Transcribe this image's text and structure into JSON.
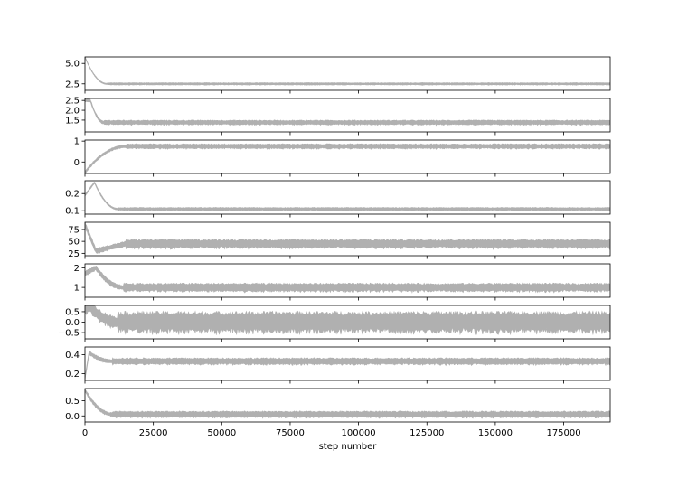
{
  "chart_data": {
    "type": "line",
    "xlabel": "step number",
    "xlim": [
      0,
      192000
    ],
    "x_ticks": [
      0,
      25000,
      50000,
      75000,
      100000,
      125000,
      150000,
      175000
    ],
    "x_tick_labels": [
      "0",
      "25000",
      "50000",
      "75000",
      "100000",
      "125000",
      "150000",
      "175000"
    ],
    "series_color": "#b0b0b0",
    "panels": [
      {
        "ylim": [
          1.7,
          5.8
        ],
        "y_ticks": [
          2.5,
          5.0
        ],
        "y_tick_labels": [
          "2.5",
          "5.0"
        ],
        "trace": {
          "start": 5.8,
          "peak": 5.8,
          "peak_x": 0,
          "settle_x": 8000,
          "mean": 2.5,
          "spread": 0.12
        }
      },
      {
        "ylim": [
          0.9,
          2.6
        ],
        "y_ticks": [
          1.5,
          2.0,
          2.5
        ],
        "y_tick_labels": [
          "1.5",
          "2.0",
          "2.5"
        ],
        "trace": {
          "start": 2.5,
          "peak": 2.5,
          "peak_x": 2000,
          "settle_x": 7000,
          "mean": 1.38,
          "spread": 0.1
        }
      },
      {
        "ylim": [
          -0.55,
          1.05
        ],
        "y_ticks": [
          0,
          1
        ],
        "y_tick_labels": [
          "0",
          "1"
        ],
        "trace": {
          "start": -0.5,
          "peak": -0.5,
          "peak_x": 0,
          "settle_x": 15000,
          "mean": 0.75,
          "spread": 0.1
        }
      },
      {
        "ylim": [
          0.08,
          0.275
        ],
        "y_ticks": [
          0.1,
          0.2
        ],
        "y_tick_labels": [
          "0.1",
          "0.2"
        ],
        "trace": {
          "start": 0.19,
          "peak": 0.265,
          "peak_x": 3500,
          "settle_x": 12000,
          "mean": 0.11,
          "spread": 0.008
        }
      },
      {
        "ylim": [
          20,
          90
        ],
        "y_ticks": [
          25,
          50,
          75
        ],
        "y_tick_labels": [
          "25",
          "50",
          "75"
        ],
        "trace": {
          "start": 85,
          "peak": 85,
          "peak_x": 0,
          "dip": 30,
          "dip_x": 4000,
          "settle_x": 15000,
          "mean": 45,
          "spread": 8
        }
      },
      {
        "ylim": [
          0.5,
          2.2
        ],
        "y_ticks": [
          1,
          2
        ],
        "y_tick_labels": [
          "1",
          "2"
        ],
        "trace": {
          "start": 1.7,
          "peak": 2.0,
          "peak_x": 4000,
          "settle_x": 14000,
          "mean": 1.0,
          "spread": 0.18
        }
      },
      {
        "ylim": [
          -0.8,
          0.8
        ],
        "y_ticks": [
          -0.5,
          0.0,
          0.5
        ],
        "y_tick_labels": [
          "−0.5",
          "0.0",
          "0.5"
        ],
        "trace": {
          "start": 0.7,
          "peak": 0.72,
          "peak_x": 2000,
          "settle_x": 12000,
          "mean": 0.0,
          "spread": 0.42
        }
      },
      {
        "ylim": [
          0.13,
          0.48
        ],
        "y_ticks": [
          0.2,
          0.4
        ],
        "y_tick_labels": [
          "0.2",
          "0.4"
        ],
        "trace": {
          "start": 0.15,
          "peak": 0.42,
          "peak_x": 1500,
          "settle_x": 10000,
          "mean": 0.33,
          "spread": 0.03
        }
      },
      {
        "ylim": [
          -0.2,
          0.9
        ],
        "y_ticks": [
          0.0,
          0.5
        ],
        "y_tick_labels": [
          "0.0",
          "0.5"
        ],
        "trace": {
          "start": 0.85,
          "peak": 0.85,
          "peak_x": 0,
          "settle_x": 10000,
          "mean": 0.05,
          "spread": 0.09
        }
      }
    ]
  }
}
